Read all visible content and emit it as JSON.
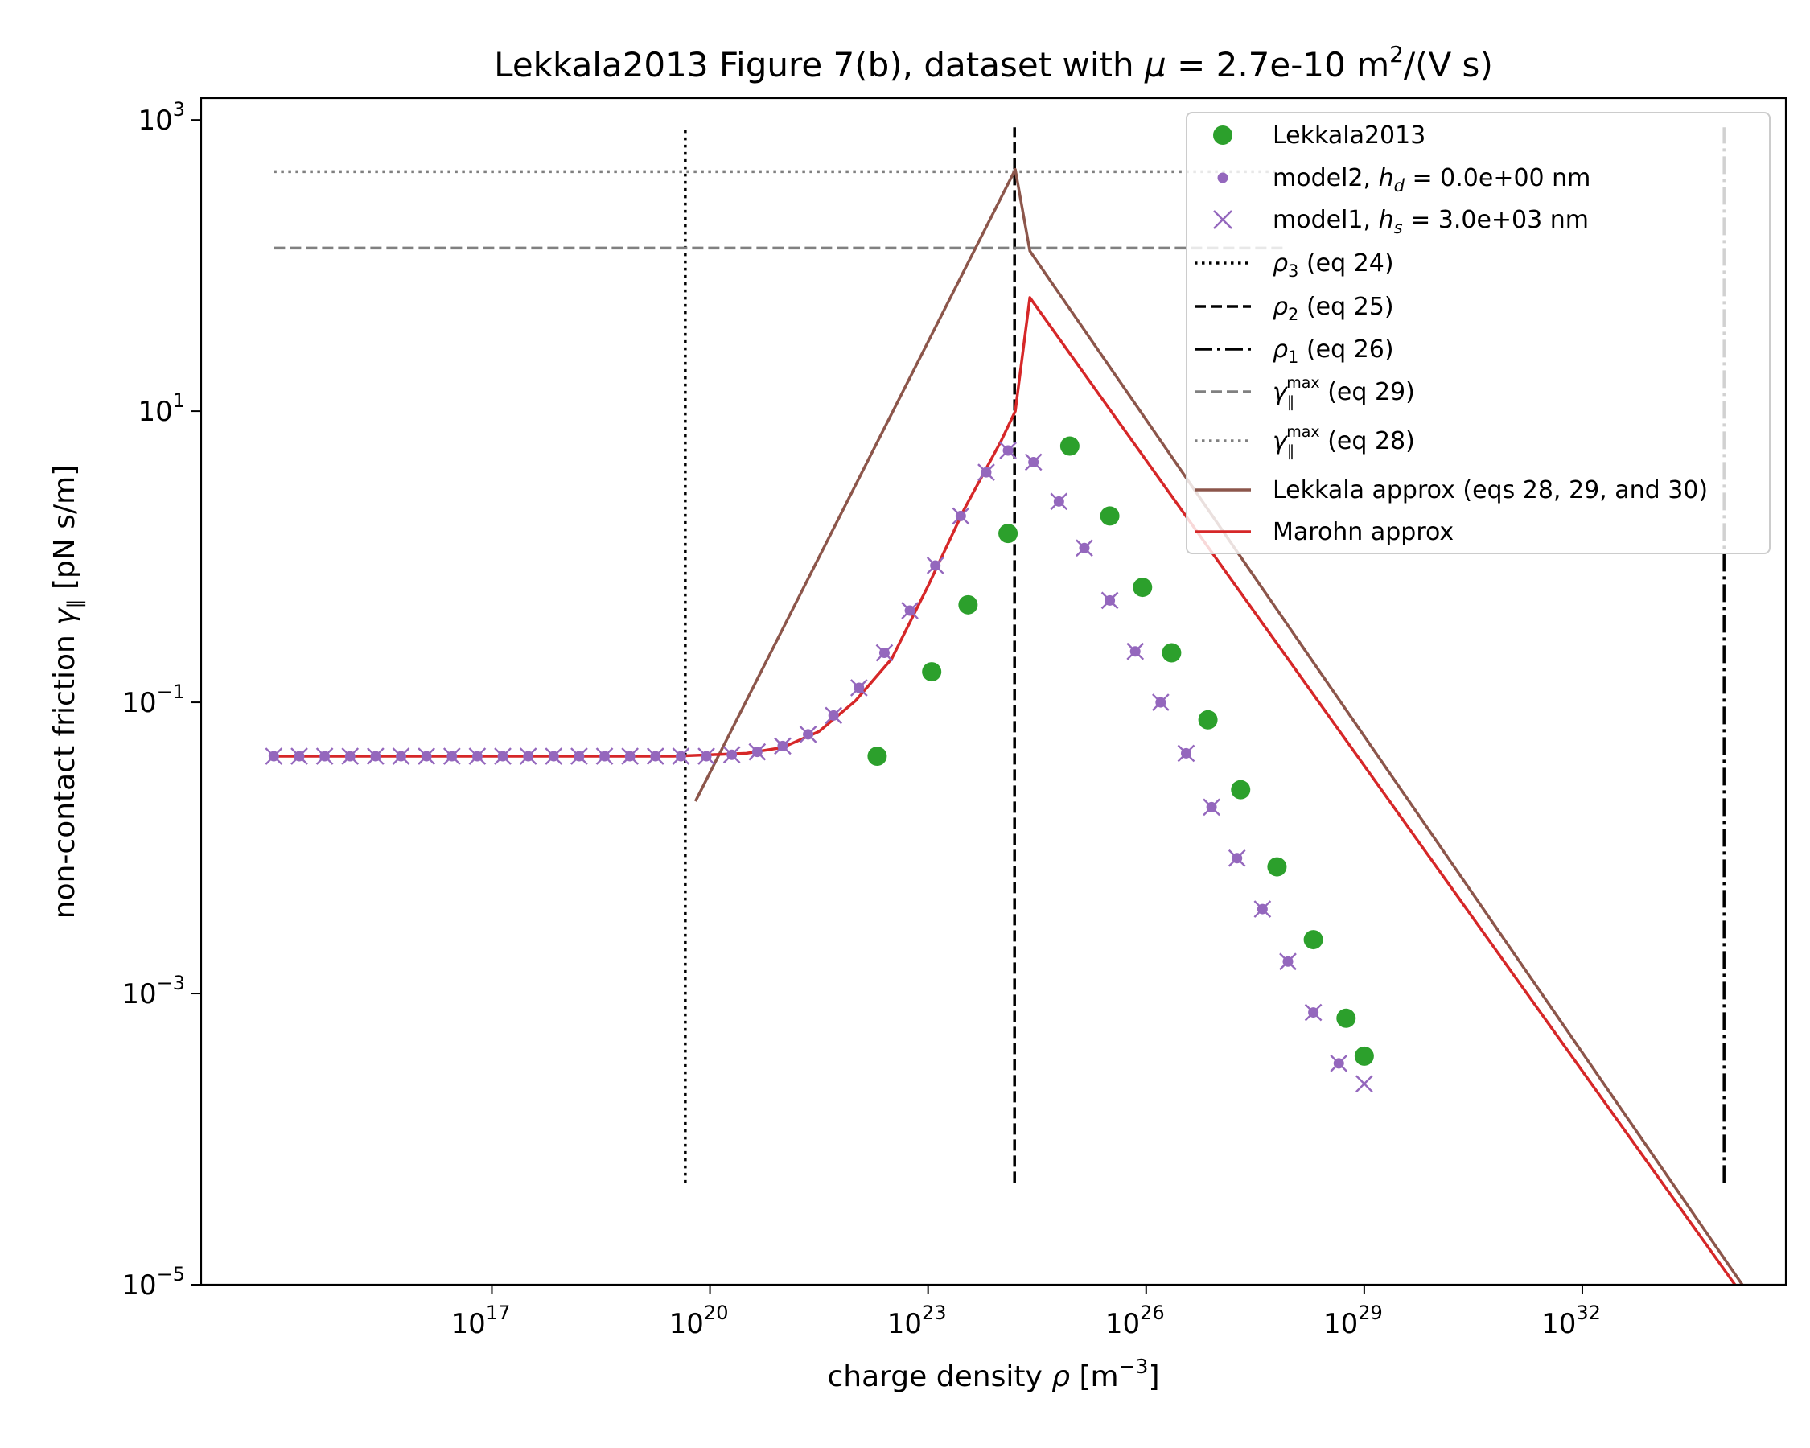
{
  "chart_data": {
    "type": "scatter",
    "title": "Lekkala2013 Figure 7(b), dataset with μ =  2.7e-10 m²/(V s)",
    "title_parts": {
      "prefix": "Lekkala2013 Figure 7(b), dataset with ",
      "mu": "μ",
      "equals": " =  2.7e-10 m",
      "sup": "2",
      "suffix": "/(V s)"
    },
    "xlabel": {
      "prefix": "charge density ",
      "rho": "ρ",
      "units_open": " [m",
      "units_sup": "−3",
      "units_close": "]"
    },
    "ylabel": {
      "prefix": "non-contact friction ",
      "gamma": "γ",
      "sub": "∥",
      "units": "  [pN s/m]"
    },
    "xscale": "log",
    "yscale": "log",
    "xlim_log10": [
      13.0,
      34.8
    ],
    "ylim_log10": [
      -5,
      3.15
    ],
    "xticks": [
      {
        "base": "10",
        "exp": "17",
        "log": 17
      },
      {
        "base": "10",
        "exp": "20",
        "log": 20
      },
      {
        "base": "10",
        "exp": "23",
        "log": 23
      },
      {
        "base": "10",
        "exp": "26",
        "log": 26
      },
      {
        "base": "10",
        "exp": "29",
        "log": 29
      },
      {
        "base": "10",
        "exp": "32",
        "log": 32
      }
    ],
    "yticks": [
      {
        "base": "10",
        "exp": "3",
        "log": 3
      },
      {
        "base": "10",
        "exp": "1",
        "log": 1
      },
      {
        "base": "10",
        "exp": "−1",
        "log": -1
      },
      {
        "base": "10",
        "exp": "−3",
        "log": -3
      },
      {
        "base": "10",
        "exp": "−5",
        "log": -5
      }
    ],
    "legend_position": "top-right",
    "grid": false,
    "colors": {
      "lekkala": "#2ca02c",
      "model": "#9467bd",
      "lekkala_approx": "#8c564b",
      "marohn_approx": "#d62728",
      "ref_black": "#000000",
      "ref_gray": "#808080"
    },
    "legend": {
      "lekkala": "Lekkala2013",
      "model2": {
        "prefix": "model2, ",
        "sym": "h",
        "sub": "d",
        "suffix": " = 0.0e+00 nm"
      },
      "model1": {
        "prefix": "model1, ",
        "sym": "h",
        "sub": "s",
        "suffix": " = 3.0e+03 nm"
      },
      "rho3": {
        "sym": "ρ",
        "sub": "3",
        "suffix": " (eq 24)"
      },
      "rho2": {
        "sym": "ρ",
        "sub": "2",
        "suffix": " (eq 25)"
      },
      "rho1": {
        "sym": "ρ",
        "sub": "1",
        "suffix": " (eq 26)"
      },
      "gmax29": {
        "sym": "γ",
        "sub": "∥",
        "sup": "max",
        "suffix": " (eq 29)"
      },
      "gmax28": {
        "sym": "γ",
        "sub": "∥",
        "sup": "max",
        "suffix": " (eq 28)"
      },
      "lekkala_approx": "Lekkala approx (eqs 28, 29, and 30)",
      "marohn_approx": "Marohn approx"
    },
    "vlines": [
      {
        "name": "rho3",
        "x_log10": 19.66,
        "y_log10": [
          -4.3,
          2.95
        ],
        "style": "dotted"
      },
      {
        "name": "rho2",
        "x_log10": 24.19,
        "y_log10": [
          -4.3,
          2.95
        ],
        "style": "dashed"
      },
      {
        "name": "rho1",
        "x_log10": 33.95,
        "y_log10": [
          -4.3,
          2.95
        ],
        "style": "dashdot"
      }
    ],
    "hlines": [
      {
        "name": "gmax28",
        "y_log10": 2.645,
        "x_log10": [
          14.0,
          27.9
        ],
        "style": "dotted"
      },
      {
        "name": "gmax29",
        "y_log10": 2.12,
        "x_log10": [
          14.0,
          27.9
        ],
        "style": "dashed"
      }
    ],
    "series": [
      {
        "name": "Lekkala2013",
        "kind": "circle",
        "points": [
          [
            22.3,
            -1.37
          ],
          [
            23.05,
            -0.79
          ],
          [
            23.55,
            -0.33
          ],
          [
            24.1,
            0.16
          ],
          [
            24.95,
            0.76
          ],
          [
            25.5,
            0.28
          ],
          [
            25.95,
            -0.21
          ],
          [
            26.35,
            -0.66
          ],
          [
            26.85,
            -1.12
          ],
          [
            27.3,
            -1.6
          ],
          [
            27.8,
            -2.13
          ],
          [
            28.3,
            -2.63
          ],
          [
            28.75,
            -3.17
          ],
          [
            29.0,
            -3.43
          ]
        ]
      },
      {
        "name": "model2",
        "kind": "dot",
        "points": [
          [
            14.0,
            -1.37
          ],
          [
            14.35,
            -1.37
          ],
          [
            14.7,
            -1.37
          ],
          [
            15.05,
            -1.37
          ],
          [
            15.4,
            -1.37
          ],
          [
            15.75,
            -1.37
          ],
          [
            16.1,
            -1.37
          ],
          [
            16.45,
            -1.37
          ],
          [
            16.8,
            -1.37
          ],
          [
            17.15,
            -1.37
          ],
          [
            17.5,
            -1.37
          ],
          [
            17.85,
            -1.37
          ],
          [
            18.2,
            -1.37
          ],
          [
            18.55,
            -1.37
          ],
          [
            18.9,
            -1.37
          ],
          [
            19.25,
            -1.37
          ],
          [
            19.6,
            -1.37
          ],
          [
            19.95,
            -1.37
          ],
          [
            20.3,
            -1.36
          ],
          [
            20.65,
            -1.34
          ],
          [
            21.0,
            -1.3
          ],
          [
            21.35,
            -1.22
          ],
          [
            21.7,
            -1.09
          ],
          [
            22.05,
            -0.9
          ],
          [
            22.4,
            -0.66
          ],
          [
            22.75,
            -0.37
          ],
          [
            23.1,
            -0.06
          ],
          [
            23.45,
            0.28
          ],
          [
            23.8,
            0.58
          ],
          [
            24.1,
            0.73
          ],
          [
            24.45,
            0.65
          ],
          [
            24.8,
            0.38
          ],
          [
            25.15,
            0.06
          ],
          [
            25.5,
            -0.3
          ],
          [
            25.85,
            -0.65
          ],
          [
            26.2,
            -1.0
          ],
          [
            26.55,
            -1.35
          ],
          [
            26.9,
            -1.72
          ],
          [
            27.25,
            -2.07
          ],
          [
            27.6,
            -2.42
          ],
          [
            27.95,
            -2.78
          ],
          [
            28.3,
            -3.13
          ],
          [
            28.65,
            -3.48
          ]
        ]
      },
      {
        "name": "model1",
        "kind": "cross",
        "points": [
          [
            14.0,
            -1.37
          ],
          [
            14.35,
            -1.37
          ],
          [
            14.7,
            -1.37
          ],
          [
            15.05,
            -1.37
          ],
          [
            15.4,
            -1.37
          ],
          [
            15.75,
            -1.37
          ],
          [
            16.1,
            -1.37
          ],
          [
            16.45,
            -1.37
          ],
          [
            16.8,
            -1.37
          ],
          [
            17.15,
            -1.37
          ],
          [
            17.5,
            -1.37
          ],
          [
            17.85,
            -1.37
          ],
          [
            18.2,
            -1.37
          ],
          [
            18.55,
            -1.37
          ],
          [
            18.9,
            -1.37
          ],
          [
            19.25,
            -1.37
          ],
          [
            19.6,
            -1.37
          ],
          [
            19.95,
            -1.37
          ],
          [
            20.3,
            -1.36
          ],
          [
            20.65,
            -1.34
          ],
          [
            21.0,
            -1.3
          ],
          [
            21.35,
            -1.22
          ],
          [
            21.7,
            -1.09
          ],
          [
            22.05,
            -0.9
          ],
          [
            22.4,
            -0.66
          ],
          [
            22.75,
            -0.37
          ],
          [
            23.1,
            -0.06
          ],
          [
            23.45,
            0.28
          ],
          [
            23.8,
            0.58
          ],
          [
            24.1,
            0.73
          ],
          [
            24.45,
            0.65
          ],
          [
            24.8,
            0.38
          ],
          [
            25.15,
            0.06
          ],
          [
            25.5,
            -0.3
          ],
          [
            25.85,
            -0.65
          ],
          [
            26.2,
            -1.0
          ],
          [
            26.55,
            -1.35
          ],
          [
            26.9,
            -1.72
          ],
          [
            27.25,
            -2.07
          ],
          [
            27.6,
            -2.42
          ],
          [
            27.95,
            -2.78
          ],
          [
            28.3,
            -3.13
          ],
          [
            28.65,
            -3.48
          ],
          [
            29.0,
            -3.62
          ]
        ]
      },
      {
        "name": "Lekkala approx (eqs 28, 29, and 30)",
        "kind": "line",
        "points": [
          [
            19.8,
            -1.68
          ],
          [
            24.2,
            2.66
          ],
          [
            24.4,
            2.1
          ],
          [
            34.2,
            -5.0
          ]
        ]
      },
      {
        "name": "Marohn approx",
        "kind": "line",
        "points": [
          [
            14.0,
            -1.37
          ],
          [
            18.5,
            -1.37
          ],
          [
            19.5,
            -1.37
          ],
          [
            20.0,
            -1.36
          ],
          [
            20.5,
            -1.35
          ],
          [
            21.0,
            -1.31
          ],
          [
            21.5,
            -1.2
          ],
          [
            22.0,
            -0.99
          ],
          [
            22.5,
            -0.7
          ],
          [
            23.0,
            -0.2
          ],
          [
            23.5,
            0.33
          ],
          [
            24.0,
            0.79
          ],
          [
            24.2,
            1.0
          ],
          [
            24.4,
            1.78
          ],
          [
            34.1,
            -5.0
          ]
        ]
      }
    ]
  }
}
